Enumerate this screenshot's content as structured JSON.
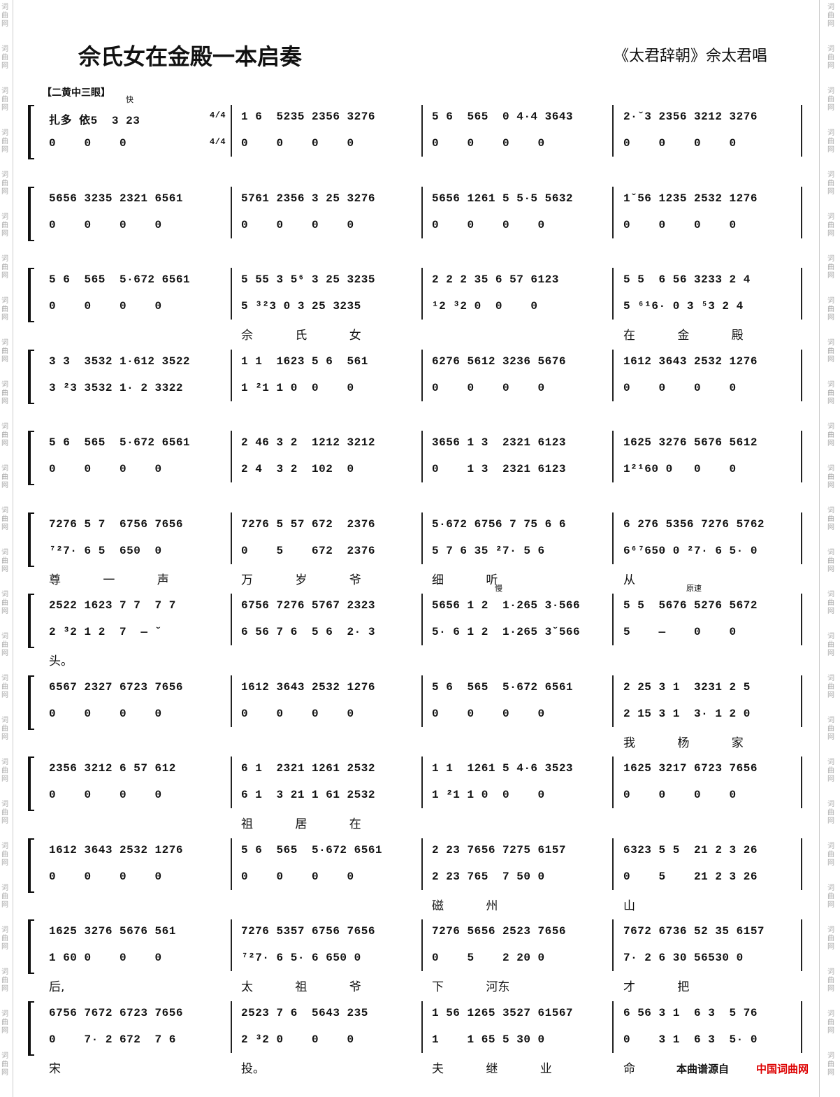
{
  "header": {
    "title": "佘氏女在金殿一本启奏",
    "subtitle": "《太君辞朝》佘太君唱",
    "section": "【二黄中三眼】"
  },
  "watermark": "词曲网",
  "footer": {
    "source": "本曲谱源自",
    "site": "中国词曲网"
  },
  "systems": [
    {
      "measures": [
        {
          "mark": "快",
          "top": "扎多 依5  3 23",
          "bottom": "0    0    0"
        },
        {
          "time": "4/4",
          "top": "1 6  5235 2356 3276",
          "bottom": "0    0    0    0"
        },
        {
          "top": "5 6  565  0 4·4 3643",
          "bottom": "0    0    0    0"
        },
        {
          "top": "2·ˇ3 2356 3212 3276",
          "bottom": "0    0    0    0"
        }
      ]
    },
    {
      "measures": [
        {
          "top": "5656 3235 2321 6561",
          "bottom": "0    0    0    0"
        },
        {
          "top": "5761 2356 3 25 3276",
          "bottom": "0    0    0    0"
        },
        {
          "top": "5656 1261 5 5·5 5632",
          "bottom": "0    0    0    0"
        },
        {
          "top": "1ˇ56 1235 2532 1276",
          "bottom": "0    0    0    0"
        }
      ]
    },
    {
      "measures": [
        {
          "top": "5 6  565  5·672 6561",
          "bottom": "0    0    0    0"
        },
        {
          "top": "5 55 3 5⁶ 3 25 3235",
          "bottom": "5 ³²3 0 3 25 3235",
          "lyrics": "佘 氏 女"
        },
        {
          "top": "2 2 2 35 6 57 6123",
          "bottom": "¹2 ³2 0  0    0"
        },
        {
          "top": "5 5  6 56 3233 2 4",
          "bottom": "5 ⁶¹6· 0 3 ⁵3 2 4",
          "lyrics": "在 金 殿"
        }
      ]
    },
    {
      "measures": [
        {
          "top": "3 3  3532 1·612 3522",
          "bottom": "3 ²3 3532 1· 2 3322"
        },
        {
          "top": "1 1  1623 5 6  561",
          "bottom": "1 ²1 1 0  0    0"
        },
        {
          "top": "6276 5612 3236 5676",
          "bottom": "0    0    0    0"
        },
        {
          "top": "1612 3643 2532 1276",
          "bottom": "0    0    0    0"
        }
      ]
    },
    {
      "measures": [
        {
          "top": "5 6  565  5·672 6561",
          "bottom": "0    0    0    0"
        },
        {
          "top": "2 46 3 2  1212 3212",
          "bottom": "2 4  3 2  102  0"
        },
        {
          "top": "3656 1 3  2321 6123",
          "bottom": "0    1 3  2321 6123"
        },
        {
          "top": "1625 3276 5676 5612",
          "bottom": "1²¹60 0   0    0"
        }
      ]
    },
    {
      "measures": [
        {
          "top": "7276 5 7  6756 7656",
          "bottom": "⁷²7· 6 5  650  0",
          "lyrics": "尊 一 声"
        },
        {
          "top": "7276 5 57 672  2376",
          "bottom": "0    5    672  2376",
          "lyrics": "万 岁 爷"
        },
        {
          "top": "5·672 6756 7 75 6 6",
          "bottom": "5 7 6 35 ²7· 5 6",
          "lyrics": "细 听"
        },
        {
          "top": "6 276 5356 7276 5762",
          "bottom": "6⁶⁷650 0 ²7· 6 5· 0",
          "lyrics": "从"
        }
      ]
    },
    {
      "measures": [
        {
          "top": "2522 1623 7 7  7 7",
          "bottom": "2 ³2 1 2  7  — ˇ",
          "lyrics": "头。"
        },
        {
          "top": "6756 7276 5767 2323",
          "bottom": "6 56 7 6  5 6  2· 3"
        },
        {
          "mark": "慢",
          "top": "5656 1 2  1·265 3·566",
          "bottom": "5· 6 1 2  1·265 3ˇ566"
        },
        {
          "mark": "原速",
          "top": "5 5  5676 5276 5672",
          "bottom": "5    —    0    0"
        }
      ]
    },
    {
      "measures": [
        {
          "top": "6567 2327 6723 7656",
          "bottom": "0    0    0    0"
        },
        {
          "top": "1612 3643 2532 1276",
          "bottom": "0    0    0    0"
        },
        {
          "top": "5 6  565  5·672 6561",
          "bottom": "0    0    0    0"
        },
        {
          "top": "2 25 3 1  3231 2 5",
          "bottom": "2 15 3 1  3· 1 2 0",
          "lyrics": "我 杨 家"
        }
      ]
    },
    {
      "measures": [
        {
          "top": "2356 3212 6 57 612",
          "bottom": "0    0    0    0"
        },
        {
          "top": "6 1  2321 1261 2532",
          "bottom": "6 1  3 21 1 61 2532",
          "lyrics": "祖 居 在"
        },
        {
          "top": "1 1  1261 5 4·6 3523",
          "bottom": "1 ²1 1 0  0    0"
        },
        {
          "top": "1625 3217 6723 7656",
          "bottom": "0    0    0    0"
        }
      ]
    },
    {
      "measures": [
        {
          "top": "1612 3643 2532 1276",
          "bottom": "0    0    0    0"
        },
        {
          "top": "5 6  565  5·672 6561",
          "bottom": "0    0    0    0"
        },
        {
          "top": "2 23 7656 7275 6157",
          "bottom": "2 23 765  7 50 0",
          "lyrics": "磁 州"
        },
        {
          "top": "6323 5 5  21 2 3 26",
          "bottom": "0    5    21 2 3 26",
          "lyrics": "山"
        }
      ]
    },
    {
      "measures": [
        {
          "top": "1625 3276 5676 561",
          "bottom": "1 60 0    0    0",
          "lyrics": "后,"
        },
        {
          "top": "7276 5357 6756 7656",
          "bottom": "⁷²7· 6 5· 6 650 0",
          "lyrics": "太 祖 爷"
        },
        {
          "top": "7276 5656 2523 7656",
          "bottom": "0    5    2 20 0",
          "lyrics": "下 河东"
        },
        {
          "top": "7672 6736 52 35 6157",
          "bottom": "7· 2 6 30 56530 0",
          "lyrics": "才 把"
        }
      ]
    },
    {
      "measures": [
        {
          "top": "6756 7672 6723 7656",
          "bottom": "0    7· 2 672  7 6",
          "lyrics": "宋"
        },
        {
          "top": "2523 7 6  5643 235",
          "bottom": "2 ³2 0    0    0",
          "lyrics": "投。"
        },
        {
          "top": "1 56 1265 3527 61567",
          "bottom": "1    1 65 5 30 0",
          "lyrics": "夫 继 业"
        },
        {
          "top": "6 56 3 1  6 3  5 76",
          "bottom": "0    3 1  6 3  5· 0",
          "lyrics": "命"
        }
      ]
    }
  ]
}
